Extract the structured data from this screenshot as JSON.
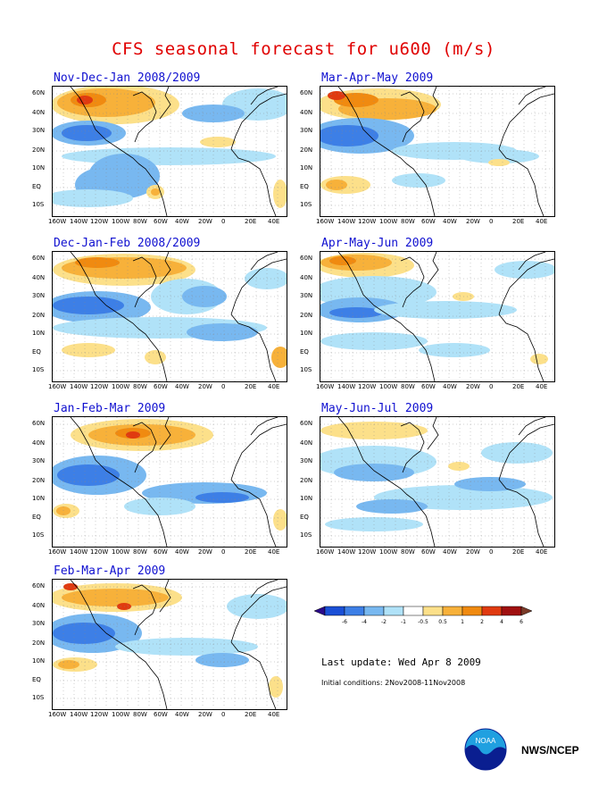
{
  "title": "CFS seasonal forecast for u600 (m/s)",
  "panels": [
    {
      "title": "Nov-Dec-Jan 2008/2009"
    },
    {
      "title": "Mar-Apr-May 2009"
    },
    {
      "title": "Dec-Jan-Feb 2008/2009"
    },
    {
      "title": "Apr-May-Jun 2009"
    },
    {
      "title": "Jan-Feb-Mar 2009"
    },
    {
      "title": "May-Jun-Jul 2009"
    },
    {
      "title": "Feb-Mar-Apr 2009"
    }
  ],
  "lat_labels": [
    "60N",
    "40N",
    "30N",
    "20N",
    "10N",
    "EQ",
    "10S"
  ],
  "lon_labels": [
    "160W",
    "140W",
    "120W",
    "100W",
    "80W",
    "60W",
    "40W",
    "20W",
    "0",
    "20E",
    "40E"
  ],
  "colorbar": {
    "labels": [
      "-6",
      "-4",
      "-2",
      "-1",
      "-0.5",
      "0.5",
      "1",
      "2",
      "4",
      "6"
    ],
    "colors": [
      "#2a0a8a",
      "#1a4fd6",
      "#3d7fe6",
      "#78b8f0",
      "#b0e2f8",
      "#ffffff",
      "#fce08a",
      "#f7b13a",
      "#f08a10",
      "#e03a10",
      "#a01010",
      "#7a3a28"
    ]
  },
  "last_update": "Last update: Wed Apr 8 2009",
  "initial_conditions": "Initial conditions: 2Nov2008-11Nov2008",
  "agency": "NWS/NCEP",
  "logo_text": "NOAA"
}
